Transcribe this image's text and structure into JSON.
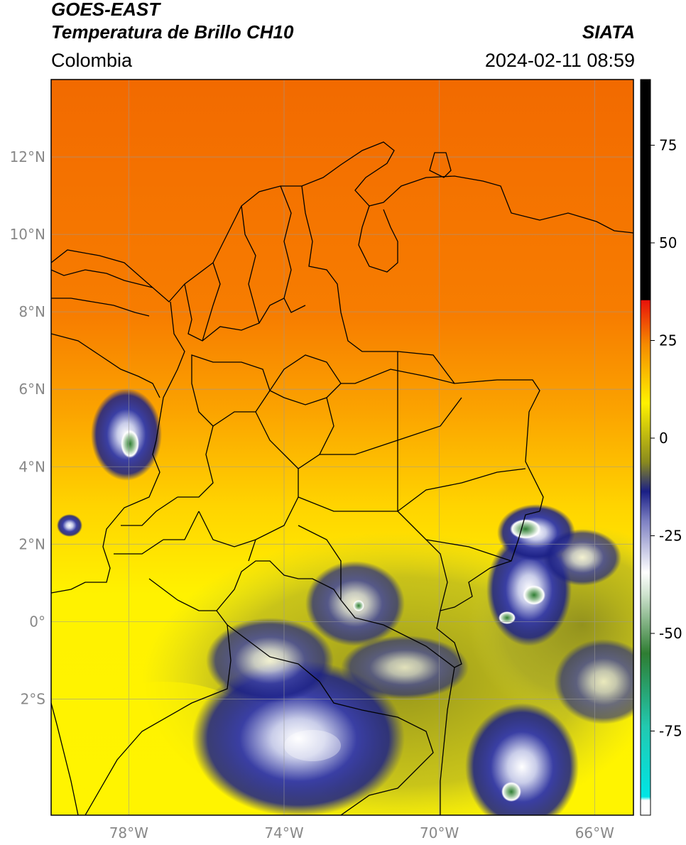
{
  "header": {
    "satellite": "GOES-EAST",
    "product": "Temperatura de Brillo CH10",
    "brand": "SIATA",
    "region": "Colombia",
    "timestamp": "2024-02-11 08:59"
  },
  "map": {
    "lon_range": [
      -80,
      -65
    ],
    "lat_range": [
      -5,
      14
    ],
    "lon_ticks": [
      "78°W",
      "74°W",
      "70°W",
      "66°W"
    ],
    "lat_ticks": [
      "12°N",
      "10°N",
      "8°N",
      "6°N",
      "4°N",
      "2°N",
      "0°",
      "2°S"
    ],
    "grid": true
  },
  "colorbar": {
    "ticks": [
      "75",
      "50",
      "25",
      "0",
      "-25",
      "-50",
      "-75"
    ],
    "colors": {
      "hot": "#000000",
      "red": "#e8120a",
      "orange": "#f58a00",
      "yellow": "#fff200",
      "olive": "#8a8a1e",
      "navy": "#1a1f86",
      "white": "#ffffff",
      "green": "#2e7d32",
      "teal": "#22c9b0",
      "cyan": "#00e5e5"
    }
  }
}
